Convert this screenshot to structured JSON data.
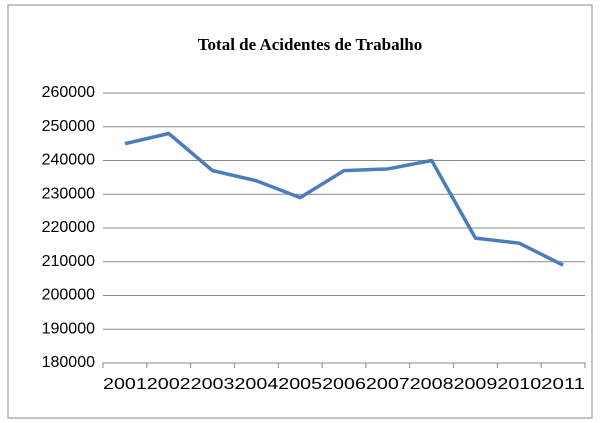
{
  "chart_data": {
    "type": "line",
    "title": "Total de Acidentes de Trabalho",
    "categories": [
      "2001",
      "2002",
      "2003",
      "2004",
      "2005",
      "2006",
      "2007",
      "2008",
      "2009",
      "2010",
      "2011"
    ],
    "series": [
      {
        "color": "#4a7ebb",
        "values": [
          245000,
          248000,
          237000,
          234000,
          229000,
          237000,
          237500,
          240000,
          217000,
          215500,
          209000
        ]
      }
    ],
    "ylim": [
      180000,
      260000
    ],
    "yticks": [
      180000,
      190000,
      200000,
      210000,
      220000,
      230000,
      240000,
      250000,
      260000
    ],
    "grid": true
  }
}
